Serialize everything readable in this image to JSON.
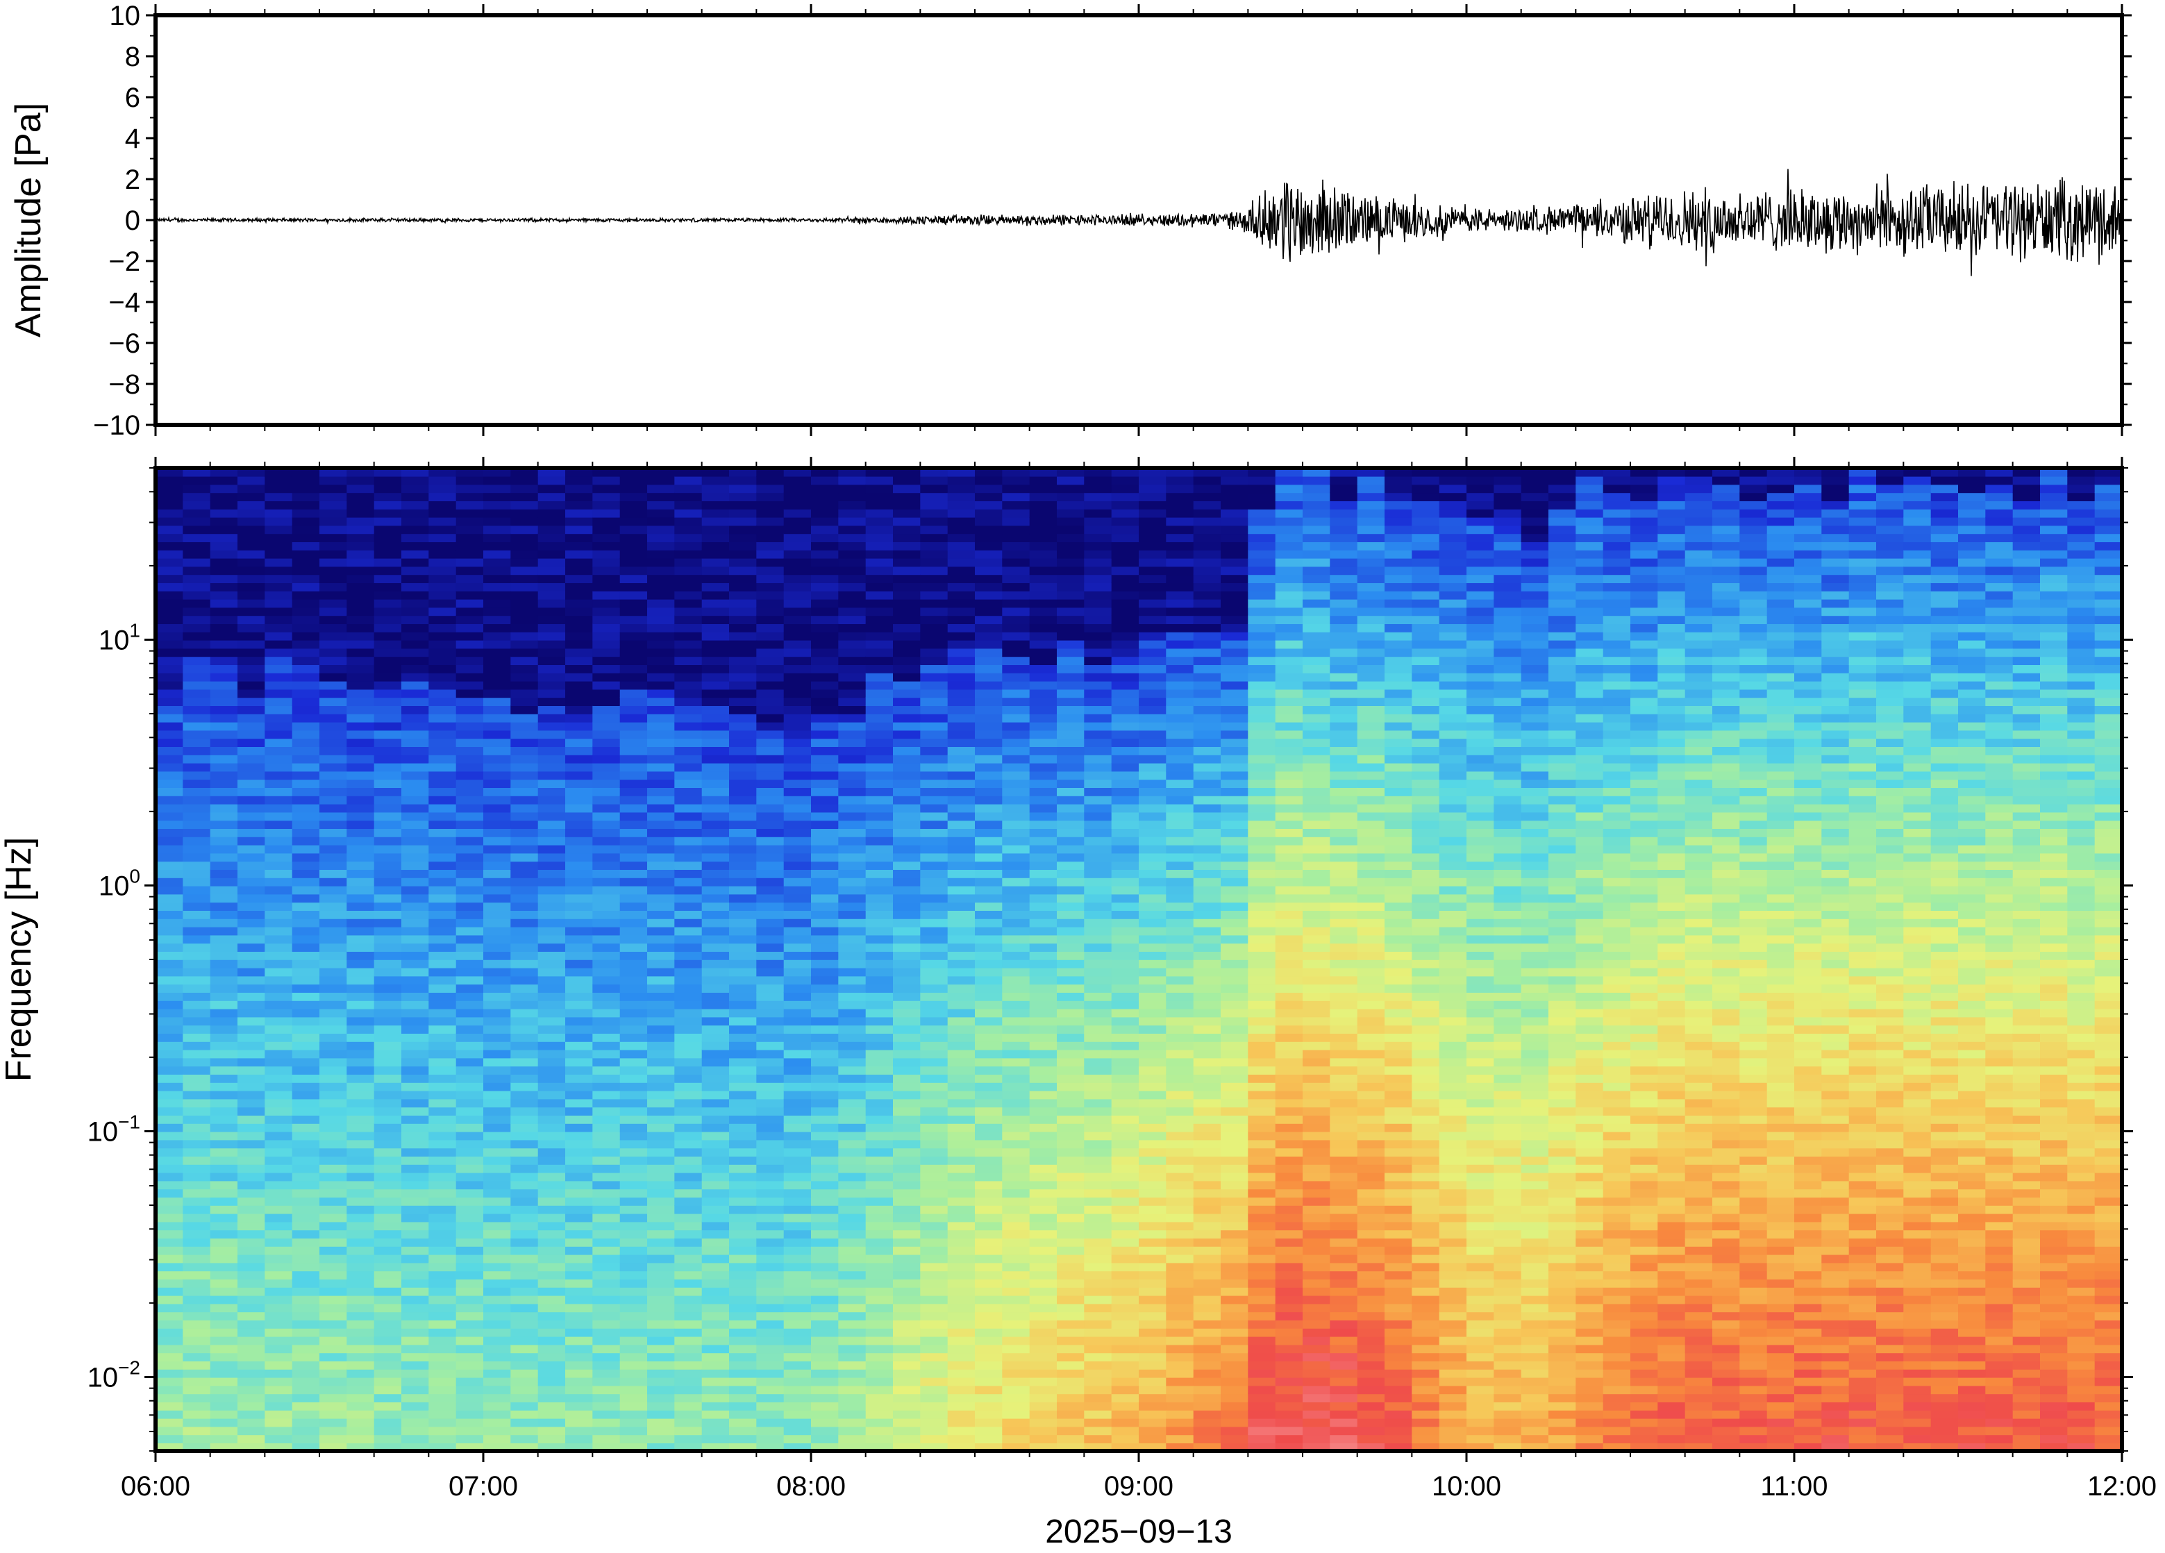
{
  "chart_data": [
    {
      "type": "line",
      "panel": "waveform",
      "ylabel": "Amplitude [Pa]",
      "ylim": [
        -10,
        10
      ],
      "yticks": [
        10,
        8,
        6,
        4,
        2,
        0,
        -2,
        -4,
        -6,
        -8,
        -10
      ],
      "ytick_labels": [
        "10",
        "8",
        "6",
        "4",
        "2",
        "0",
        "−2",
        "−4",
        "−6",
        "−8",
        "−10"
      ],
      "xlim": [
        "06:00",
        "12:00"
      ],
      "series": [
        {
          "color": "#000000",
          "envelope": {
            "time_hours": [
              6.0,
              7.0,
              8.0,
              8.5,
              9.0,
              9.3,
              9.35,
              9.45,
              9.55,
              9.7,
              9.9,
              10.1,
              10.3,
              10.5,
              10.7,
              11.0,
              11.5,
              12.0
            ],
            "amplitude_pa": [
              0.1,
              0.1,
              0.1,
              0.3,
              0.3,
              0.5,
              1.0,
              2.6,
              2.2,
              1.4,
              0.9,
              0.6,
              0.8,
              1.3,
              1.8,
              1.7,
              2.1,
              2.3
            ]
          }
        }
      ],
      "grid": false
    },
    {
      "type": "heatmap",
      "panel": "spectrogram",
      "xlabel": "2025−09−13",
      "ylabel": "Frequency [Hz]",
      "y_scale": "log",
      "ylim_hz": [
        0.005,
        50
      ],
      "yticks": [
        {
          "mantissa": "10",
          "exponent": "1",
          "value": 10
        },
        {
          "mantissa": "10",
          "exponent": "0",
          "value": 1
        },
        {
          "mantissa": "10",
          "exponent": "−1",
          "value": 0.1
        },
        {
          "mantissa": "10",
          "exponent": "−2",
          "value": 0.01
        }
      ],
      "x_ticks": [
        "06:00",
        "07:00",
        "08:00",
        "09:00",
        "10:00",
        "11:00",
        "12:00"
      ],
      "colormap": [
        "#0a0670",
        "#1a2bd6",
        "#2b8cf0",
        "#56d8e6",
        "#a6eea0",
        "#e6f27a",
        "#f7c658",
        "#f88a3e",
        "#ef4b4b",
        "#f89a9a"
      ],
      "time_hours": [
        6.0,
        7.0,
        8.0,
        8.5,
        9.0,
        9.3,
        9.4,
        9.6,
        9.8,
        10.0,
        10.2,
        10.4,
        10.6,
        11.0,
        11.5,
        12.0
      ],
      "edge_frequency_hz": [
        8,
        6,
        5,
        8,
        9,
        10,
        45,
        45,
        40,
        28,
        28,
        40,
        45,
        45,
        45,
        45
      ],
      "level_low_freq": [
        0.45,
        0.42,
        0.42,
        0.6,
        0.7,
        0.82,
        0.92,
        0.92,
        0.85,
        0.72,
        0.7,
        0.78,
        0.85,
        0.86,
        0.86,
        0.86
      ],
      "grid": false,
      "legend": "none"
    }
  ]
}
